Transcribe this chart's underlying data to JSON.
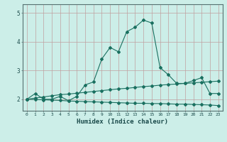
{
  "xlabel": "Humidex (Indice chaleur)",
  "ylabel": "",
  "background_color": "#cceee8",
  "grid_color": "#c0a0a0",
  "line_color": "#1a7060",
  "xlim": [
    -0.5,
    23.5
  ],
  "ylim": [
    1.6,
    5.3
  ],
  "yticks": [
    2,
    3,
    4,
    5
  ],
  "xticks": [
    0,
    1,
    2,
    3,
    4,
    5,
    6,
    7,
    8,
    9,
    10,
    11,
    12,
    13,
    14,
    15,
    16,
    17,
    18,
    19,
    20,
    21,
    22,
    23
  ],
  "line1_x": [
    0,
    1,
    2,
    3,
    4,
    5,
    6,
    7,
    8,
    9,
    10,
    11,
    12,
    13,
    14,
    15,
    16,
    17,
    18,
    19,
    20,
    21,
    22,
    23
  ],
  "line1_y": [
    2.0,
    2.2,
    2.0,
    2.0,
    2.1,
    1.95,
    2.1,
    2.5,
    2.6,
    3.4,
    3.8,
    3.65,
    4.35,
    4.5,
    4.75,
    4.65,
    3.1,
    2.85,
    2.55,
    2.55,
    2.65,
    2.75,
    2.2,
    2.2
  ],
  "line2_x": [
    0,
    1,
    2,
    3,
    4,
    5,
    6,
    7,
    8,
    9,
    10,
    11,
    12,
    13,
    14,
    15,
    16,
    17,
    18,
    19,
    20,
    21,
    22,
    23
  ],
  "line2_y": [
    2.0,
    2.04,
    2.08,
    2.12,
    2.16,
    2.18,
    2.21,
    2.24,
    2.27,
    2.3,
    2.33,
    2.36,
    2.38,
    2.41,
    2.44,
    2.46,
    2.49,
    2.51,
    2.53,
    2.55,
    2.57,
    2.59,
    2.61,
    2.63
  ],
  "line3_x": [
    0,
    1,
    2,
    3,
    4,
    5,
    6,
    7,
    8,
    9,
    10,
    11,
    12,
    13,
    14,
    15,
    16,
    17,
    18,
    19,
    20,
    21,
    22,
    23
  ],
  "line3_y": [
    2.0,
    1.99,
    1.98,
    1.97,
    1.96,
    1.94,
    1.93,
    1.92,
    1.91,
    1.9,
    1.89,
    1.88,
    1.87,
    1.86,
    1.86,
    1.85,
    1.85,
    1.84,
    1.83,
    1.83,
    1.82,
    1.81,
    1.8,
    1.78
  ]
}
